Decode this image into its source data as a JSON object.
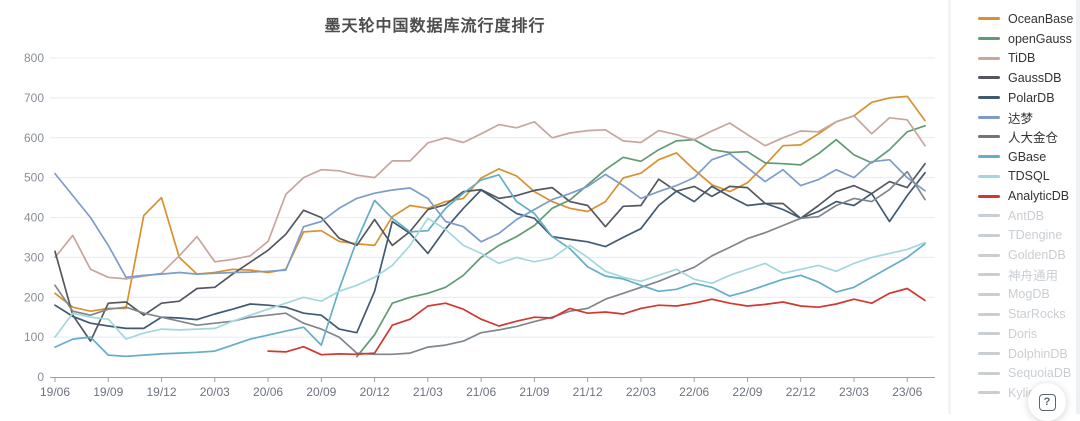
{
  "chart": {
    "title": "墨天轮中国数据库流行度排行",
    "help_button_label": "?"
  },
  "chart_data": {
    "type": "line",
    "title": "墨天轮中国数据库流行度排行",
    "xlabel": "",
    "ylabel": "",
    "ylim": [
      0,
      800
    ],
    "y_ticks": [
      0,
      100,
      200,
      300,
      400,
      500,
      600,
      700,
      800
    ],
    "grid": true,
    "legend_position": "right",
    "x": [
      "19/06",
      "19/07",
      "19/08",
      "19/09",
      "19/10",
      "19/11",
      "19/12",
      "20/01",
      "20/02",
      "20/03",
      "20/04",
      "20/05",
      "20/06",
      "20/07",
      "20/08",
      "20/09",
      "20/10",
      "20/11",
      "20/12",
      "21/01",
      "21/02",
      "21/03",
      "21/04",
      "21/05",
      "21/06",
      "21/07",
      "21/08",
      "21/09",
      "21/10",
      "21/11",
      "21/12",
      "22/01",
      "22/02",
      "22/03",
      "22/04",
      "22/05",
      "22/06",
      "22/07",
      "22/08",
      "22/09",
      "22/10",
      "22/11",
      "22/12",
      "23/01",
      "23/02",
      "23/03",
      "23/04",
      "23/05",
      "23/06",
      "23/07"
    ],
    "x_tick_labels": [
      "19/06",
      "19/09",
      "19/12",
      "20/03",
      "20/06",
      "20/09",
      "20/12",
      "21/03",
      "21/06",
      "21/09",
      "21/12",
      "22/03",
      "22/06",
      "22/09",
      "22/12",
      "23/03",
      "23/06"
    ],
    "series": [
      {
        "name": "OceanBase",
        "color": "#d8912f",
        "values": [
          210,
          175,
          165,
          172,
          172,
          405,
          450,
          300,
          258,
          262,
          270,
          268,
          262,
          270,
          364,
          367,
          340,
          334,
          330,
          402,
          430,
          423,
          440,
          448,
          499,
          522,
          504,
          465,
          440,
          423,
          415,
          440,
          499,
          511,
          545,
          562,
          520,
          482,
          465,
          487,
          532,
          580,
          582,
          610,
          640,
          655,
          689,
          700,
          704,
          643
        ]
      },
      {
        "name": "openGauss",
        "color": "#5f9b74",
        "values": [
          null,
          null,
          null,
          null,
          null,
          null,
          null,
          null,
          null,
          null,
          null,
          null,
          null,
          null,
          null,
          null,
          null,
          51,
          106,
          185,
          200,
          210,
          225,
          255,
          300,
          330,
          352,
          380,
          423,
          444,
          482,
          520,
          551,
          541,
          570,
          592,
          595,
          570,
          563,
          565,
          537,
          535,
          532,
          560,
          595,
          557,
          537,
          570,
          615,
          630
        ]
      },
      {
        "name": "TiDB",
        "color": "#c7a69e",
        "values": [
          300,
          355,
          270,
          250,
          246,
          253,
          260,
          304,
          352,
          289,
          295,
          304,
          340,
          458,
          500,
          520,
          517,
          506,
          500,
          542,
          542,
          587,
          600,
          588,
          610,
          633,
          625,
          640,
          600,
          612,
          618,
          620,
          592,
          588,
          618,
          608,
          595,
          617,
          637,
          608,
          580,
          600,
          617,
          615,
          640,
          655,
          610,
          650,
          645,
          580
        ]
      },
      {
        "name": "GaussDB",
        "color": "#54585e",
        "values": [
          315,
          155,
          90,
          185,
          188,
          155,
          185,
          190,
          222,
          225,
          258,
          288,
          318,
          358,
          418,
          400,
          348,
          330,
          395,
          330,
          365,
          420,
          432,
          465,
          470,
          448,
          455,
          468,
          475,
          440,
          430,
          377,
          428,
          430,
          496,
          466,
          478,
          453,
          478,
          475,
          435,
          435,
          398,
          430,
          465,
          480,
          460,
          490,
          475,
          535
        ]
      },
      {
        "name": "PolarDB",
        "color": "#425a70",
        "values": [
          180,
          152,
          135,
          128,
          122,
          122,
          150,
          148,
          144,
          158,
          170,
          183,
          180,
          175,
          160,
          155,
          120,
          111,
          215,
          390,
          360,
          310,
          372,
          423,
          469,
          440,
          410,
          398,
          352,
          345,
          339,
          327,
          350,
          372,
          430,
          466,
          440,
          478,
          453,
          430,
          435,
          420,
          398,
          415,
          440,
          430,
          460,
          390,
          455,
          512
        ]
      },
      {
        "name": "达梦",
        "color": "#7e9cc9",
        "values": [
          510,
          455,
          400,
          330,
          250,
          255,
          258,
          262,
          258,
          260,
          262,
          263,
          265,
          268,
          377,
          390,
          423,
          448,
          461,
          469,
          474,
          448,
          390,
          377,
          339,
          360,
          395,
          420,
          445,
          460,
          478,
          508,
          480,
          448,
          465,
          480,
          500,
          545,
          560,
          525,
          490,
          520,
          480,
          495,
          520,
          500,
          540,
          545,
          500,
          467
        ]
      },
      {
        "name": "人大金仓",
        "color": "#80868c",
        "values": [
          230,
          165,
          155,
          170,
          175,
          160,
          150,
          140,
          130,
          135,
          140,
          150,
          155,
          160,
          135,
          120,
          100,
          60,
          57,
          57,
          60,
          75,
          80,
          90,
          111,
          118,
          127,
          139,
          150,
          165,
          172,
          195,
          210,
          225,
          240,
          258,
          275,
          304,
          325,
          347,
          362,
          380,
          398,
          402,
          430,
          448,
          440,
          470,
          515,
          445
        ]
      },
      {
        "name": "GBase",
        "color": "#64aec8",
        "values": [
          75,
          95,
          100,
          55,
          52,
          55,
          58,
          60,
          62,
          65,
          80,
          95,
          105,
          115,
          125,
          80,
          220,
          342,
          443,
          398,
          364,
          367,
          423,
          461,
          494,
          507,
          440,
          410,
          352,
          322,
          276,
          253,
          246,
          230,
          215,
          220,
          235,
          225,
          203,
          215,
          230,
          245,
          255,
          238,
          213,
          225,
          250,
          275,
          300,
          334
        ]
      },
      {
        "name": "TDSQL",
        "color": "#a3d7de",
        "values": [
          100,
          160,
          150,
          145,
          95,
          110,
          120,
          118,
          120,
          122,
          140,
          155,
          170,
          185,
          200,
          190,
          215,
          230,
          250,
          280,
          330,
          398,
          370,
          330,
          310,
          285,
          300,
          289,
          298,
          330,
          300,
          265,
          250,
          240,
          255,
          270,
          245,
          235,
          255,
          270,
          285,
          260,
          270,
          280,
          265,
          285,
          300,
          310,
          320,
          337
        ]
      },
      {
        "name": "AnalyticDB",
        "color": "#d23730",
        "values": [
          null,
          null,
          null,
          null,
          null,
          null,
          null,
          null,
          null,
          null,
          null,
          null,
          65,
          63,
          76,
          56,
          58,
          57,
          60,
          130,
          145,
          178,
          185,
          170,
          145,
          128,
          140,
          150,
          148,
          172,
          160,
          163,
          158,
          172,
          180,
          178,
          185,
          195,
          185,
          178,
          182,
          188,
          178,
          175,
          183,
          195,
          185,
          210,
          222,
          192
        ]
      }
    ]
  },
  "legend": {
    "items": [
      {
        "label": "OceanBase",
        "color": "#d8912f",
        "enabled": true
      },
      {
        "label": "openGauss",
        "color": "#5f9b74",
        "enabled": true
      },
      {
        "label": "TiDB",
        "color": "#c7a69e",
        "enabled": true
      },
      {
        "label": "GaussDB",
        "color": "#54585e",
        "enabled": true
      },
      {
        "label": "PolarDB",
        "color": "#425a70",
        "enabled": true
      },
      {
        "label": "达梦",
        "color": "#7e9cc9",
        "enabled": true
      },
      {
        "label": "人大金仓",
        "color": "#6f757b",
        "enabled": true
      },
      {
        "label": "GBase",
        "color": "#64aec8",
        "enabled": true
      },
      {
        "label": "TDSQL",
        "color": "#a3d7de",
        "enabled": true
      },
      {
        "label": "AnalyticDB",
        "color": "#d23730",
        "enabled": true
      },
      {
        "label": "AntDB",
        "color": "#c9ced3",
        "enabled": false
      },
      {
        "label": "TDengine",
        "color": "#c9ced3",
        "enabled": false
      },
      {
        "label": "GoldenDB",
        "color": "#c9ced3",
        "enabled": false
      },
      {
        "label": "神舟通用",
        "color": "#c9ced3",
        "enabled": false
      },
      {
        "label": "MogDB",
        "color": "#c9ced3",
        "enabled": false
      },
      {
        "label": "StarRocks",
        "color": "#c9ced3",
        "enabled": false
      },
      {
        "label": "Doris",
        "color": "#c9ced3",
        "enabled": false
      },
      {
        "label": "DolphinDB",
        "color": "#c9ced3",
        "enabled": false
      },
      {
        "label": "SequoiaDB",
        "color": "#c9ced3",
        "enabled": false
      },
      {
        "label": "Kyligence",
        "color": "#c9ced3",
        "enabled": false
      }
    ]
  }
}
